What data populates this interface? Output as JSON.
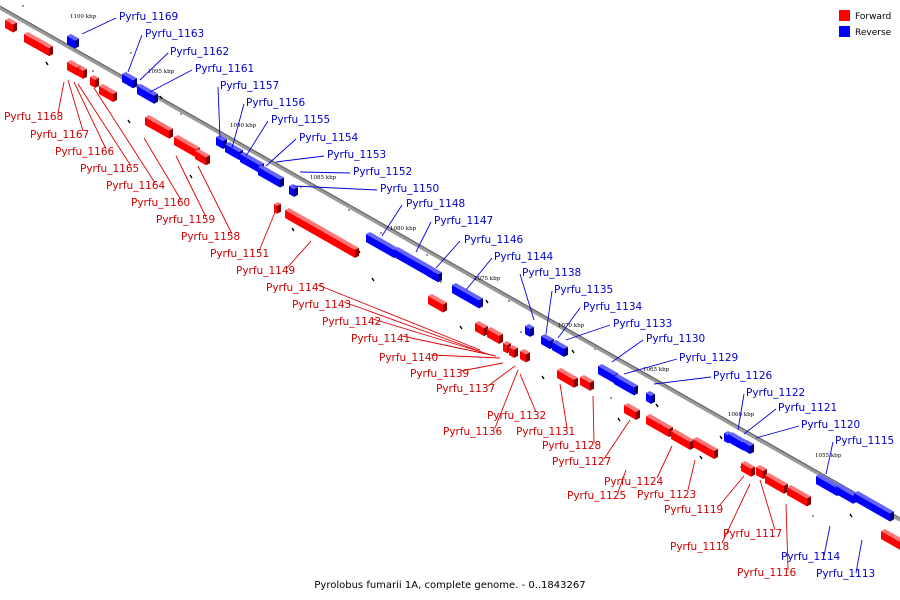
{
  "caption": "Pyrolobus fumarii 1A, complete genome. - 0..1843267",
  "legend": [
    {
      "label": "Forward",
      "color": "#ff0000"
    },
    {
      "label": "Reverse",
      "color": "#0000ff"
    }
  ],
  "colors": {
    "forward": "#ff0000",
    "reverse": "#0000ff",
    "forward_line": "#dd0000",
    "reverse_line": "#0000dd",
    "axis": "#9a9a9a"
  },
  "ticks": [
    "1100 kbp",
    "1095 kbp",
    "1090 kbp",
    "1085 kbp",
    "1080 kbp",
    "1075 kbp",
    "1070 kbp",
    "1065 kbp",
    "1060 kbp",
    "1055 kbp"
  ],
  "forward_labels": [
    "Pyrfu_1168",
    "Pyrfu_1167",
    "Pyrfu_1166",
    "Pyrfu_1165",
    "Pyrfu_1164",
    "Pyrfu_1160",
    "Pyrfu_1159",
    "Pyrfu_1158",
    "Pyrfu_1151",
    "Pyrfu_1149",
    "Pyrfu_1145",
    "Pyrfu_1143",
    "Pyrfu_1142",
    "Pyrfu_1141",
    "Pyrfu_1140",
    "Pyrfu_1139",
    "Pyrfu_1137",
    "Pyrfu_1132",
    "Pyrfu_1136",
    "Pyrfu_1131",
    "Pyrfu_1128",
    "Pyrfu_1127",
    "Pyrfu_1124",
    "Pyrfu_1125",
    "Pyrfu_1123",
    "Pyrfu_1119",
    "Pyrfu_1117",
    "Pyrfu_1118",
    "Pyrfu_1116"
  ],
  "reverse_labels": [
    "Pyrfu_1169",
    "Pyrfu_1163",
    "Pyrfu_1162",
    "Pyrfu_1161",
    "Pyrfu_1157",
    "Pyrfu_1156",
    "Pyrfu_1155",
    "Pyrfu_1154",
    "Pyrfu_1153",
    "Pyrfu_1152",
    "Pyrfu_1150",
    "Pyrfu_1148",
    "Pyrfu_1147",
    "Pyrfu_1146",
    "Pyrfu_1144",
    "Pyrfu_1138",
    "Pyrfu_1135",
    "Pyrfu_1134",
    "Pyrfu_1133",
    "Pyrfu_1130",
    "Pyrfu_1129",
    "Pyrfu_1126",
    "Pyrfu_1122",
    "Pyrfu_1121",
    "Pyrfu_1120",
    "Pyrfu_1115",
    "Pyrfu_1114",
    "Pyrfu_1113"
  ]
}
